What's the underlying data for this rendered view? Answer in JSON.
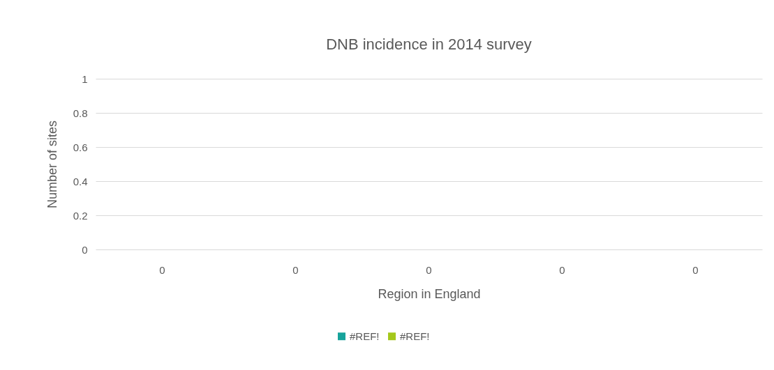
{
  "chart_data": {
    "type": "bar",
    "title": "DNB incidence in 2014 survey",
    "xlabel": "Region in England",
    "ylabel": "Number of sites",
    "categories": [
      "0",
      "0",
      "0",
      "0",
      "0"
    ],
    "series": [
      {
        "name": "#REF!",
        "color": "#17a39b",
        "values": [
          0,
          0,
          0,
          0,
          0
        ]
      },
      {
        "name": "#REF!",
        "color": "#a4c81c",
        "values": [
          0,
          0,
          0,
          0,
          0
        ]
      }
    ],
    "ylim": [
      0,
      1
    ],
    "yticks": [
      0,
      0.2,
      0.4,
      0.6,
      0.8,
      1
    ],
    "grid": "y",
    "legend": "bottom"
  }
}
